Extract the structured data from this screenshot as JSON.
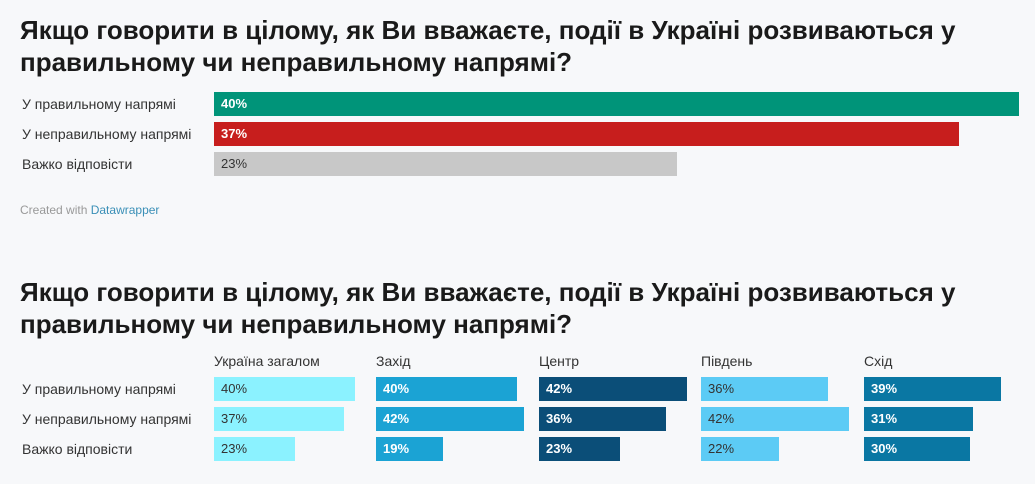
{
  "chart_data": [
    {
      "type": "bar",
      "title": "Якщо говорити в цілому, як Ви вважаєте, події в Україні розвиваються у правильному чи неправильному напрямі?",
      "categories": [
        "У правильному напрямі",
        "У неправильному напрямі",
        "Важко відповісти"
      ],
      "values": [
        40,
        37,
        23
      ],
      "value_labels": [
        "40%",
        "37%",
        "23%"
      ],
      "colors": [
        "#009479",
        "#c71e1d",
        "#c8c8c8"
      ],
      "xlim": [
        0,
        40
      ]
    },
    {
      "type": "bar",
      "title": "Якщо говорити в цілому, як Ви вважаєте, події в Україні розвиваються у правильному чи неправильному напрямі?",
      "categories": [
        "У правильному напрямі",
        "У неправильному напрямі",
        "Важко відповісти"
      ],
      "series": [
        {
          "name": "Україна загалом",
          "values": [
            40,
            37,
            23
          ],
          "value_labels": [
            "40%",
            "37%",
            "23%"
          ],
          "color": "#8bf2ff"
        },
        {
          "name": "Захід",
          "values": [
            40,
            42,
            19
          ],
          "value_labels": [
            "40%",
            "42%",
            "19%"
          ],
          "color": "#1ba3d4"
        },
        {
          "name": "Центр",
          "values": [
            42,
            36,
            23
          ],
          "value_labels": [
            "42%",
            "36%",
            "23%"
          ],
          "color": "#0b4e78"
        },
        {
          "name": "Південь",
          "values": [
            36,
            42,
            22
          ],
          "value_labels": [
            "36%",
            "42%",
            "22%"
          ],
          "color": "#5ccbf5"
        },
        {
          "name": "Схід",
          "values": [
            39,
            31,
            30
          ],
          "value_labels": [
            "39%",
            "31%",
            "30%"
          ],
          "color": "#0a77a3"
        }
      ],
      "xlim": [
        0,
        42
      ]
    }
  ],
  "credit": {
    "prefix": "Created with",
    "link": "Datawrapper"
  }
}
